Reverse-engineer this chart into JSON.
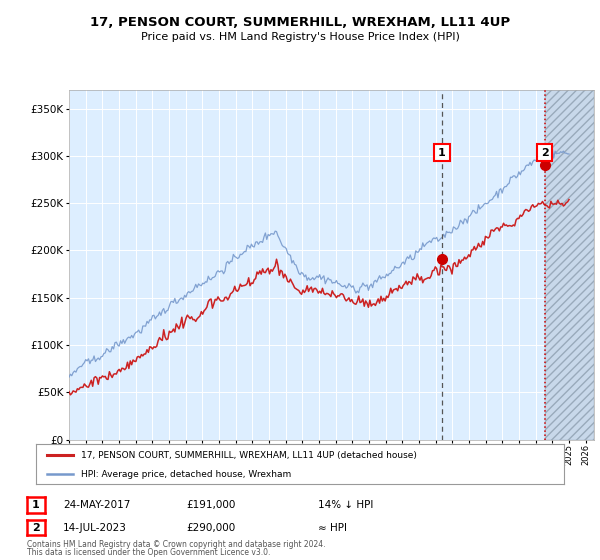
{
  "title": "17, PENSON COURT, SUMMERHILL, WREXHAM, LL11 4UP",
  "subtitle": "Price paid vs. HM Land Registry's House Price Index (HPI)",
  "hpi_legend": "HPI: Average price, detached house, Wrexham",
  "price_legend": "17, PENSON COURT, SUMMERHILL, WREXHAM, LL11 4UP (detached house)",
  "footnote1": "Contains HM Land Registry data © Crown copyright and database right 2024.",
  "footnote2": "This data is licensed under the Open Government Licence v3.0.",
  "marker1_date": "24-MAY-2017",
  "marker1_price": "£191,000",
  "marker1_hpi": "14% ↓ HPI",
  "marker2_date": "14-JUL-2023",
  "marker2_price": "£290,000",
  "marker2_hpi": "≈ HPI",
  "hpi_color": "#7799cc",
  "price_color": "#cc2222",
  "marker_color": "#cc0000",
  "bg_color": "#ddeeff",
  "outer_bg": "#ffffff",
  "ylim": [
    0,
    370000
  ],
  "yticks": [
    0,
    50000,
    100000,
    150000,
    200000,
    250000,
    300000,
    350000
  ],
  "xlim_start": 1995.0,
  "xlim_end": 2026.5,
  "marker1_x": 2017.38,
  "marker1_y": 191000,
  "marker2_x": 2023.54,
  "marker2_y": 290000
}
